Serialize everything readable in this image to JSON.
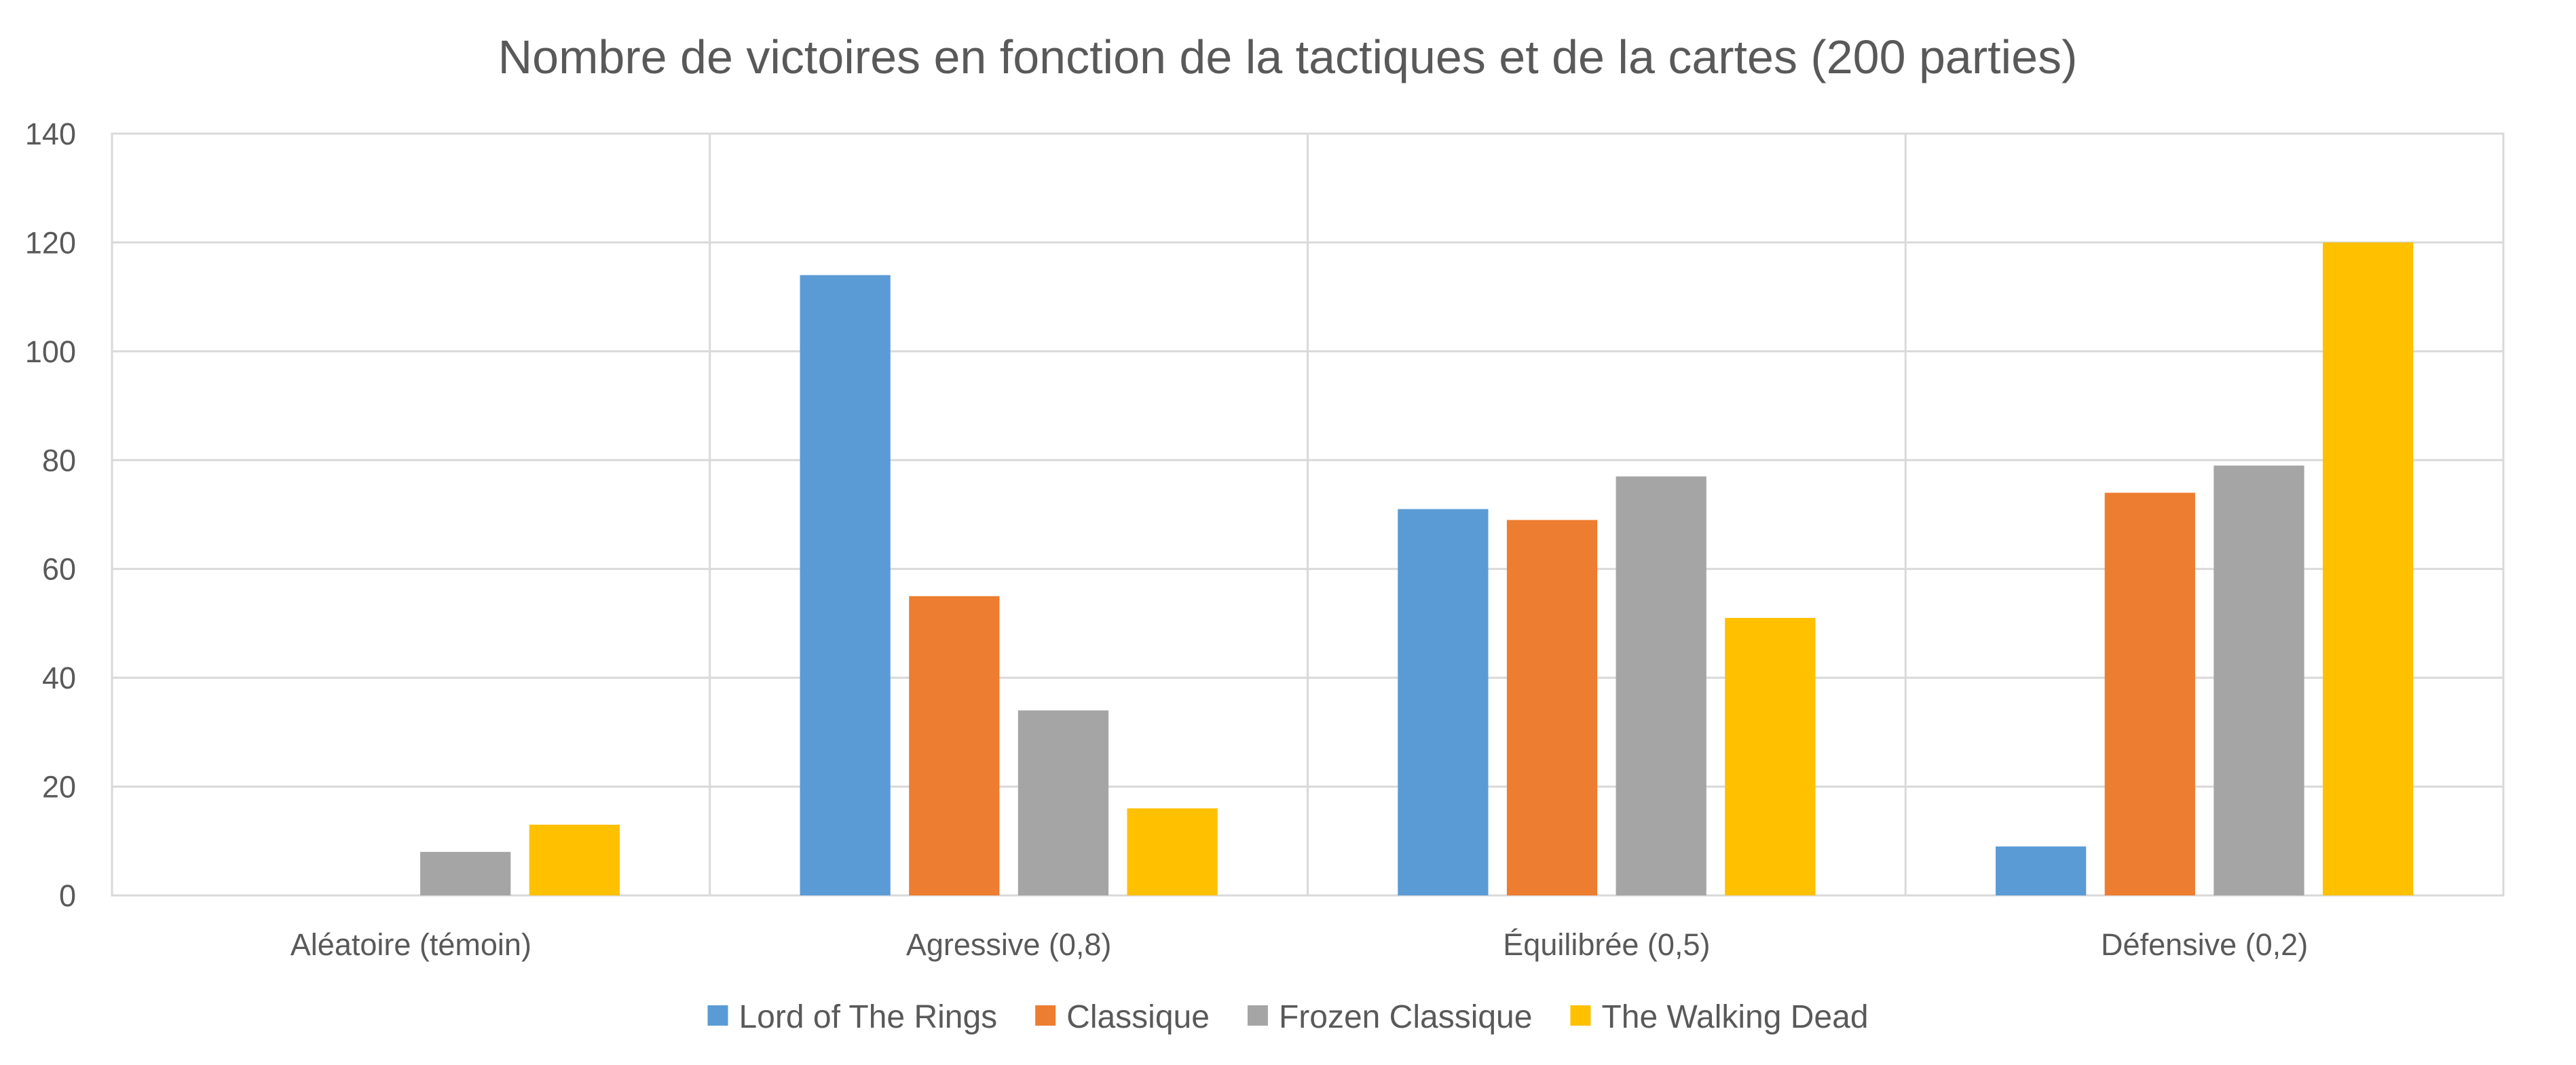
{
  "chart_data": {
    "type": "bar",
    "title": "Nombre de victoires en fonction de la tactiques et de la cartes (200 parties)",
    "xlabel": "",
    "ylabel": "",
    "categories": [
      "Aléatoire (témoin)",
      "Agressive (0,8)",
      "Équilibrée (0,5)",
      "Défensive (0,2)"
    ],
    "series": [
      {
        "name": "Lord of The Rings",
        "color": "#5B9BD5",
        "values": [
          0,
          114,
          71,
          9
        ]
      },
      {
        "name": "Classique",
        "color": "#ED7D31",
        "values": [
          0,
          55,
          69,
          74
        ]
      },
      {
        "name": "Frozen Classique",
        "color": "#A5A5A5",
        "values": [
          8,
          34,
          77,
          79
        ]
      },
      {
        "name": "The Walking Dead",
        "color": "#FFC000",
        "values": [
          13,
          16,
          51,
          120
        ]
      }
    ],
    "ylim": [
      0,
      140
    ],
    "yticks": [
      "0",
      "20",
      "40",
      "60",
      "80",
      "100",
      "120",
      "140"
    ],
    "grid": true,
    "legend_position": "bottom"
  }
}
